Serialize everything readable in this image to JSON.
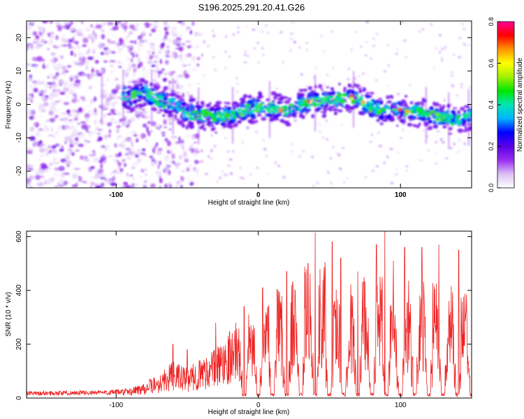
{
  "title": "S196.2025.291.20.41.G26",
  "chart_data": [
    {
      "type": "heatmap",
      "name": "spectrogram",
      "xlabel": "Height of straight line (km)",
      "ylabel": "Frequency (Hz)",
      "xlim": [
        -163,
        150
      ],
      "ylim": [
        -25,
        25
      ],
      "xticks": [
        -100,
        0,
        100
      ],
      "xtick_labels": [
        "-100",
        "0",
        "100"
      ],
      "yticks": [
        -20,
        -10,
        0,
        10,
        20
      ],
      "ytick_labels": [
        "-20",
        "-10",
        "0",
        "10",
        "20"
      ],
      "colorbar": {
        "label": "Normalized spectral amplitude",
        "range": [
          0,
          0.8
        ],
        "ticks": [
          0,
          0.2,
          0.4,
          0.6,
          0.8
        ],
        "tick_labels": [
          "0.0",
          "0.2",
          "0.4",
          "0.6",
          "0.8"
        ],
        "colors": [
          "#ffffff",
          "#dcc0f5",
          "#9a2df0",
          "#5a00e6",
          "#0000ff",
          "#00b4ff",
          "#00e6b4",
          "#00e600",
          "#a0f000",
          "#ffff00",
          "#ff9600",
          "#ff0000",
          "#ff0096"
        ]
      },
      "ridge_trace": {
        "x": [
          -100,
          -90,
          -80,
          -70,
          -60,
          -50,
          -40,
          -30,
          -20,
          -10,
          0,
          10,
          20,
          30,
          40,
          50,
          60,
          70,
          80,
          90,
          100,
          110,
          120,
          130,
          140,
          150
        ],
        "y": [
          3,
          2,
          4,
          1,
          0,
          -3,
          -3,
          -4,
          -3,
          -2,
          -1,
          -1,
          -2,
          0,
          1,
          1,
          2,
          2,
          -1,
          -2,
          -2,
          -2,
          -3,
          -4,
          -5,
          -3
        ]
      }
    },
    {
      "type": "line",
      "name": "snr",
      "xlabel": "Height of straight line (km)",
      "ylabel": "SNR (10 * v/v)",
      "xlim": [
        -163,
        150
      ],
      "ylim": [
        0,
        620
      ],
      "xticks": [
        -100,
        0,
        100
      ],
      "xtick_labels": [
        "-100",
        "0",
        "100"
      ],
      "yticks": [
        0,
        200,
        400,
        600
      ],
      "ytick_labels": [
        "0",
        "200",
        "400",
        "600"
      ],
      "color": "#ee2222",
      "envelope": {
        "x": [
          -163,
          -100,
          -90,
          -80,
          -70,
          -60,
          -50,
          -40,
          -30,
          -20,
          -10,
          0,
          10,
          20,
          30,
          40,
          50,
          60,
          70,
          80,
          90,
          100,
          110,
          120,
          130,
          140,
          150
        ],
        "y": [
          20,
          25,
          30,
          50,
          70,
          110,
          90,
          120,
          150,
          210,
          250,
          280,
          320,
          330,
          380,
          420,
          400,
          340,
          360,
          380,
          400,
          340,
          360,
          360,
          350,
          330,
          330
        ]
      },
      "dropouts_x": [
        -10,
        0,
        10,
        20,
        30,
        40,
        50,
        60,
        70,
        80,
        90,
        100,
        110,
        120,
        130,
        140,
        150
      ],
      "spikes": {
        "x": [
          -60,
          -50,
          -30,
          -10,
          3,
          20,
          35,
          40,
          52,
          58,
          70,
          83,
          89,
          95,
          103,
          115,
          127,
          141
        ],
        "y": [
          200,
          180,
          280,
          340,
          410,
          470,
          500,
          615,
          580,
          520,
          470,
          570,
          620,
          510,
          560,
          560,
          570,
          550
        ]
      }
    }
  ]
}
